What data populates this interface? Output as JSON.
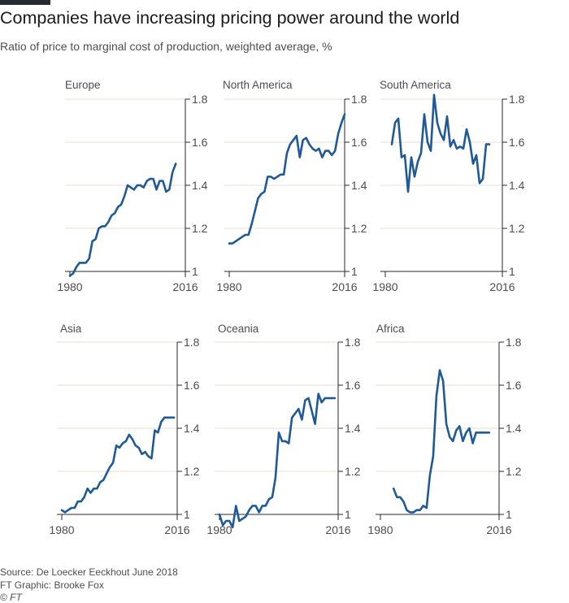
{
  "title": "Companies have increasing pricing power around the world",
  "subtitle": "Ratio of price to marginal cost of production, weighted average, %",
  "footer": {
    "source": "Source: De Loecker Eeckhout June 2018",
    "graphic": "FT Graphic: Brooke Fox",
    "copyright": "© FT"
  },
  "colors": {
    "line": "#1f5a96",
    "grid": "#e9ddd7",
    "axis": "#262a33"
  },
  "chart_data": [
    {
      "type": "line",
      "title": "Europe",
      "xlim": [
        1980,
        2016
      ],
      "ylim": [
        1,
        1.8
      ],
      "xticks": [
        "1980",
        "2016"
      ],
      "yticks": [
        "1",
        "1.2",
        "1.4",
        "1.6",
        "1.8"
      ],
      "x": [
        1980,
        1981,
        1982,
        1983,
        1984,
        1985,
        1986,
        1987,
        1988,
        1989,
        1990,
        1991,
        1992,
        1993,
        1994,
        1995,
        1996,
        1997,
        1998,
        1999,
        2000,
        2001,
        2002,
        2003,
        2004,
        2005,
        2006,
        2007,
        2008,
        2009,
        2010,
        2011,
        2012,
        2013
      ],
      "values": [
        0.98,
        0.99,
        1.02,
        1.04,
        1.04,
        1.04,
        1.06,
        1.14,
        1.15,
        1.2,
        1.21,
        1.21,
        1.23,
        1.26,
        1.27,
        1.3,
        1.31,
        1.35,
        1.4,
        1.39,
        1.38,
        1.4,
        1.4,
        1.39,
        1.42,
        1.43,
        1.43,
        1.38,
        1.42,
        1.42,
        1.37,
        1.38,
        1.46,
        1.5
      ]
    },
    {
      "type": "line",
      "title": "North America",
      "xlim": [
        1980,
        2016
      ],
      "ylim": [
        1,
        1.8
      ],
      "xticks": [
        "1980",
        "2016"
      ],
      "yticks": [
        "1",
        "1.2",
        "1.4",
        "1.6",
        "1.8"
      ],
      "x": [
        1980,
        1981,
        1982,
        1983,
        1984,
        1985,
        1986,
        1987,
        1988,
        1989,
        1990,
        1991,
        1992,
        1993,
        1994,
        1995,
        1996,
        1997,
        1998,
        1999,
        2000,
        2001,
        2002,
        2003,
        2004,
        2005,
        2006,
        2007,
        2008,
        2009,
        2010,
        2011,
        2012,
        2013,
        2014,
        2015,
        2016
      ],
      "values": [
        1.13,
        1.13,
        1.14,
        1.15,
        1.16,
        1.17,
        1.17,
        1.22,
        1.28,
        1.34,
        1.36,
        1.37,
        1.44,
        1.44,
        1.43,
        1.44,
        1.45,
        1.45,
        1.55,
        1.59,
        1.61,
        1.63,
        1.53,
        1.61,
        1.62,
        1.59,
        1.57,
        1.56,
        1.57,
        1.53,
        1.56,
        1.56,
        1.54,
        1.56,
        1.64,
        1.69,
        1.73
      ]
    },
    {
      "type": "line",
      "title": "South America",
      "xlim": [
        1980,
        2016
      ],
      "ylim": [
        1,
        1.8
      ],
      "xticks": [
        "1980",
        "2016"
      ],
      "yticks": [
        "1",
        "1.2",
        "1.4",
        "1.6",
        "1.8"
      ],
      "x": [
        1982,
        1983,
        1984,
        1985,
        1986,
        1987,
        1988,
        1989,
        1990,
        1991,
        1992,
        1993,
        1994,
        1995,
        1996,
        1997,
        1998,
        1999,
        2000,
        2001,
        2002,
        2003,
        2004,
        2005,
        2006,
        2007,
        2008,
        2009,
        2010,
        2011,
        2012
      ],
      "values": [
        1.59,
        1.69,
        1.71,
        1.53,
        1.54,
        1.37,
        1.53,
        1.44,
        1.51,
        1.55,
        1.73,
        1.6,
        1.56,
        1.82,
        1.69,
        1.64,
        1.61,
        1.72,
        1.58,
        1.61,
        1.57,
        1.58,
        1.57,
        1.66,
        1.6,
        1.5,
        1.54,
        1.41,
        1.43,
        1.59,
        1.59
      ]
    },
    {
      "type": "line",
      "title": "Asia",
      "xlim": [
        1980,
        2016
      ],
      "ylim": [
        1,
        1.8
      ],
      "xticks": [
        "1980",
        "2016"
      ],
      "yticks": [
        "1",
        "1.2",
        "1.4",
        "1.6",
        "1.8"
      ],
      "x": [
        1980,
        1981,
        1982,
        1983,
        1984,
        1985,
        1986,
        1987,
        1988,
        1989,
        1990,
        1991,
        1992,
        1993,
        1994,
        1995,
        1996,
        1997,
        1998,
        1999,
        2000,
        2001,
        2002,
        2003,
        2004,
        2005,
        2006,
        2007,
        2008,
        2009,
        2010,
        2011,
        2012,
        2013,
        2014,
        2015
      ],
      "values": [
        1.02,
        1.01,
        1.02,
        1.03,
        1.03,
        1.06,
        1.06,
        1.08,
        1.12,
        1.1,
        1.12,
        1.12,
        1.15,
        1.16,
        1.19,
        1.22,
        1.24,
        1.32,
        1.31,
        1.33,
        1.34,
        1.37,
        1.35,
        1.32,
        1.31,
        1.28,
        1.29,
        1.27,
        1.26,
        1.39,
        1.38,
        1.43,
        1.45,
        1.45,
        1.45,
        1.45
      ]
    },
    {
      "type": "line",
      "title": "Oceania",
      "xlim": [
        1980,
        2016
      ],
      "ylim": [
        1,
        1.8
      ],
      "xticks": [
        "1980",
        "2016"
      ],
      "yticks": [
        "1",
        "1.2",
        "1.4",
        "1.6",
        "1.8"
      ],
      "x": [
        1980,
        1981,
        1982,
        1983,
        1984,
        1985,
        1986,
        1987,
        1988,
        1989,
        1990,
        1991,
        1992,
        1993,
        1994,
        1995,
        1996,
        1997,
        1998,
        1999,
        2000,
        2001,
        2002,
        2003,
        2004,
        2005,
        2006,
        2007,
        2008,
        2009,
        2010,
        2011,
        2012,
        2013,
        2014,
        2015
      ],
      "values": [
        1.0,
        0.95,
        0.97,
        0.97,
        0.94,
        1.04,
        0.97,
        0.98,
        0.99,
        1.02,
        1.04,
        1.04,
        1.01,
        1.04,
        1.04,
        1.07,
        1.08,
        1.17,
        1.38,
        1.34,
        1.34,
        1.33,
        1.45,
        1.47,
        1.49,
        1.44,
        1.53,
        1.54,
        1.48,
        1.42,
        1.56,
        1.52,
        1.54,
        1.54,
        1.54,
        1.54
      ]
    },
    {
      "type": "line",
      "title": "Africa",
      "xlim": [
        1980,
        2016
      ],
      "ylim": [
        1,
        1.8
      ],
      "xticks": [
        "1980",
        "2016"
      ],
      "yticks": [
        "1",
        "1.2",
        "1.4",
        "1.6",
        "1.8"
      ],
      "x": [
        1984,
        1985,
        1986,
        1987,
        1988,
        1989,
        1990,
        1991,
        1992,
        1993,
        1994,
        1995,
        1996,
        1997,
        1998,
        1999,
        2000,
        2001,
        2002,
        2003,
        2004,
        2005,
        2006,
        2007,
        2008,
        2009,
        2010,
        2011,
        2012,
        2013
      ],
      "values": [
        1.12,
        1.08,
        1.08,
        1.06,
        1.02,
        1.01,
        1.01,
        1.02,
        1.02,
        1.04,
        1.03,
        1.18,
        1.27,
        1.55,
        1.67,
        1.62,
        1.42,
        1.36,
        1.34,
        1.39,
        1.41,
        1.34,
        1.38,
        1.4,
        1.33,
        1.38,
        1.38,
        1.38,
        1.38,
        1.38
      ]
    }
  ]
}
